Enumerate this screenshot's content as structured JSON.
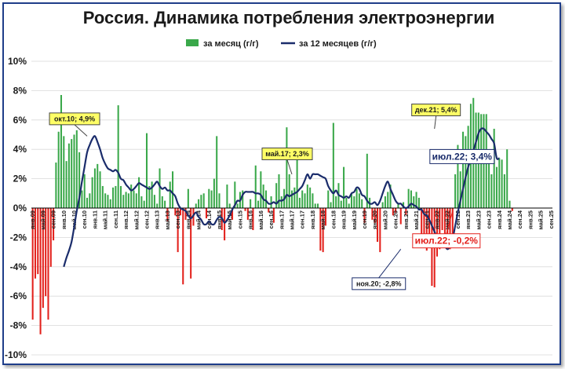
{
  "chart_data": {
    "type": "bar",
    "title": "Россия. Динамика потребления электроэнергии",
    "ylim": [
      -10,
      10
    ],
    "yticks": [
      10,
      8,
      6,
      4,
      2,
      0,
      -2,
      -4,
      -6,
      -8,
      -10
    ],
    "ytick_labels": [
      "10%",
      "8%",
      "6%",
      "4%",
      "2%",
      "0%",
      "-2%",
      "-4%",
      "-6%",
      "-8%",
      "-10%"
    ],
    "x_start": "2009-01",
    "x_end": "2025-09",
    "xtick_labels": [
      "янв.09",
      "май.09",
      "сен.09",
      "янв.10",
      "май.10",
      "сен.10",
      "янв.11",
      "май.11",
      "сен.11",
      "янв.12",
      "май.12",
      "сен.12",
      "янв.13",
      "май.13",
      "сен.13",
      "янв.14",
      "май.14",
      "сен.14",
      "янв.15",
      "май.15",
      "сен.15",
      "янв.16",
      "май.16",
      "сен.16",
      "янв.17",
      "май.17",
      "сен.17",
      "янв.18",
      "май.18",
      "сен.18",
      "янв.19",
      "май.19",
      "сен.19",
      "янв.20",
      "май.20",
      "сен.20",
      "янв.21",
      "май.21",
      "сен.21",
      "янв.22",
      "май.22",
      "сен.22",
      "янв.23",
      "май.23",
      "сен.23",
      "янв.24",
      "май.24",
      "сен.24",
      "янв.25",
      "май.25",
      "сен.25"
    ],
    "grid": true,
    "legend_position": "top",
    "series": [
      {
        "name": "за месяц (г/г)",
        "kind": "bar",
        "positive_color": "#3aa84a",
        "negative_color": "#e3201b",
        "values": [
          -7.6,
          -4.8,
          -4.5,
          -8.6,
          -6.8,
          -6.0,
          -7.6,
          -4.0,
          -2.2,
          3.1,
          5.2,
          7.7,
          4.9,
          3.2,
          4.4,
          4.7,
          5.0,
          5.3,
          3.8,
          1.2,
          2.3,
          0.7,
          1.0,
          2.1,
          2.7,
          3.0,
          2.5,
          1.5,
          1.0,
          0.9,
          0.6,
          1.4,
          1.5,
          7.0,
          1.5,
          0.9,
          1.1,
          1.0,
          1.6,
          1.2,
          1.0,
          2.1,
          0.8,
          0.5,
          5.1,
          1.5,
          1.8,
          0.9,
          0.3,
          2.7,
          0.8,
          0.5,
          -0.9,
          1.8,
          2.5,
          -0.5,
          -3.0,
          -0.5,
          -5.2,
          -0.8,
          1.3,
          -4.8,
          -1.2,
          0.3,
          0.6,
          0.9,
          1.0,
          -0.7,
          1.3,
          1.2,
          2.0,
          4.9,
          1.0,
          -1.5,
          -2.2,
          1.6,
          0.3,
          -0.8,
          1.8,
          0.3,
          1.1,
          1.2,
          -0.2,
          -0.8,
          0.6,
          -1.5,
          2.9,
          0.5,
          2.5,
          1.6,
          1.2,
          -0.3,
          0.8,
          -1.0,
          1.7,
          2.3,
          0.8,
          1.3,
          5.5,
          2.3,
          1.2,
          1.4,
          4.1,
          0.7,
          1.2,
          1.0,
          1.6,
          1.4,
          1.0,
          0.3,
          0.3,
          -2.9,
          -3.0,
          -1.2,
          1.2,
          0.4,
          5.8,
          0.8,
          1.7,
          0.5,
          2.8,
          0.7,
          0.3,
          1.0,
          0.8,
          1.3,
          1.0,
          0.6,
          -1.0,
          3.7,
          0.7,
          -0.8,
          -1.0,
          -2.3,
          -3.0,
          0.4,
          0.8,
          1.1,
          1.6,
          -0.5,
          -0.3,
          0.3,
          -1.1,
          0.4,
          -0.5,
          1.3,
          1.2,
          0.8,
          1.1,
          0.7,
          -2.2,
          -2.6,
          -2.9,
          -2.6,
          -5.3,
          -5.4,
          -3.3,
          -2.8,
          -1.5,
          -2.4,
          -2.5,
          -2.8,
          -2.4,
          2.3,
          4.3,
          2.5,
          5.2,
          4.9,
          5.6,
          7.1,
          7.5,
          6.5,
          6.5,
          6.4,
          6.4,
          6.4,
          4.0,
          2.3,
          5.4,
          2.8,
          3.4,
          3.3,
          2.3,
          4.0,
          0.5,
          -0.2
        ]
      },
      {
        "name": "за 12 месяцев (г/г)",
        "kind": "line",
        "color": "#1a2c6b",
        "x_start": "2010-01",
        "values": [
          -4.0,
          -3.4,
          -2.9,
          -2.3,
          -1.3,
          -0.2,
          0.7,
          1.8,
          2.8,
          3.8,
          4.3,
          4.7,
          4.9,
          4.5,
          4.0,
          3.4,
          3.0,
          2.7,
          2.6,
          2.5,
          2.6,
          2.4,
          2.0,
          1.9,
          1.6,
          1.4,
          1.2,
          1.3,
          1.5,
          1.7,
          1.6,
          1.5,
          1.4,
          1.3,
          1.4,
          1.6,
          1.8,
          1.5,
          1.3,
          1.4,
          1.2,
          1.2,
          1.0,
          0.8,
          0.3,
          0.0,
          -0.1,
          -0.2,
          -0.5,
          -0.7,
          -0.5,
          -0.3,
          -0.6,
          -0.8,
          -1.1,
          -1.1,
          -0.9,
          -1.1,
          -1.1,
          -0.8,
          -0.6,
          -0.7,
          -1.0,
          -0.8,
          -0.5,
          -0.1,
          0.2,
          0.5,
          0.5,
          0.9,
          1.1,
          1.1,
          1.1,
          1.1,
          1.0,
          1.0,
          0.9,
          0.6,
          0.5,
          0.3,
          0.3,
          0.4,
          0.3,
          0.5,
          0.5,
          0.6,
          0.9,
          0.8,
          0.9,
          1.0,
          1.1,
          1.3,
          1.5,
          1.9,
          2.3,
          2.0,
          2.3,
          2.3,
          2.3,
          2.2,
          2.1,
          2.0,
          1.5,
          1.2,
          1.0,
          1.2,
          0.9,
          0.8,
          0.7,
          0.8,
          0.7,
          1.0,
          1.1,
          1.4,
          1.3,
          0.9,
          0.8,
          0.5,
          0.3,
          0.3,
          0.4,
          0.2,
          0.5,
          1.0,
          1.5,
          1.8,
          1.3,
          0.9,
          0.5,
          0.3,
          0.3,
          0.1,
          0.0,
          0.1,
          0.3,
          0.2,
          0.1,
          -0.1,
          -0.1,
          -0.4,
          -0.5,
          -0.8,
          -1.2,
          -1.6,
          -2.0,
          -2.2,
          -2.4,
          -2.6,
          -2.8,
          -2.6,
          -2.1,
          -1.2,
          -0.3,
          0.5,
          1.3,
          2.1,
          2.8,
          3.3,
          3.9,
          4.5,
          5.1,
          5.4,
          5.4,
          5.2,
          5.0,
          4.7,
          4.4,
          3.4,
          3.4
        ]
      }
    ],
    "annotations": [
      {
        "text": "окт.10; 4,9%",
        "date": "2010-10",
        "value": 4.9,
        "style": "yellow"
      },
      {
        "text": "май.17; 2,3%",
        "date": "2017-05",
        "value": 2.3,
        "style": "yellow"
      },
      {
        "text": "дек.21; 5,4%",
        "date": "2021-12",
        "value": 5.4,
        "style": "yellow"
      },
      {
        "text": "ноя.20; -2,8%",
        "date": "2020-11",
        "value": -2.8,
        "style": "white"
      },
      {
        "text": "июл.22; 3,4%",
        "date": "2022-07",
        "value": 3.4,
        "style": "navy"
      },
      {
        "text": "июл.22; -0,2%",
        "date": "2022-07",
        "value": -0.2,
        "style": "red"
      }
    ]
  }
}
